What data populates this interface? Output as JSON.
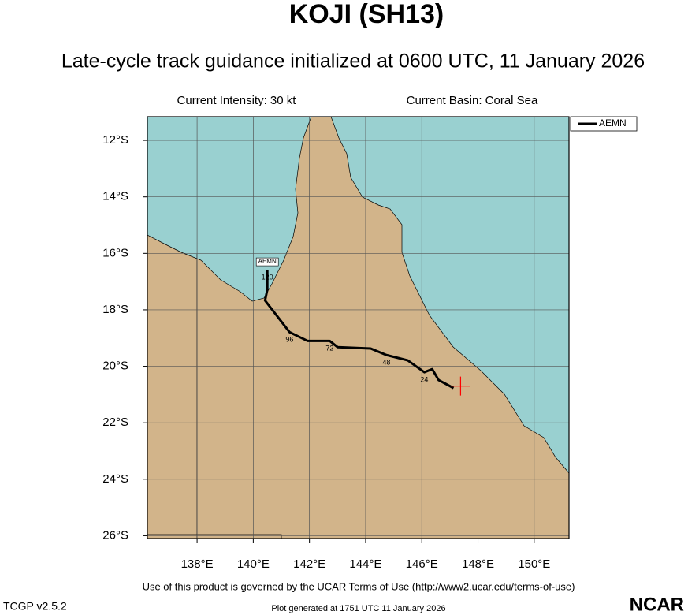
{
  "chart_data": {
    "type": "track",
    "title": "KOJI (SH13)",
    "subtitle": "Late-cycle track guidance initialized at 0600 UTC, 11 January 2026",
    "info_left": "Current Intensity: 30 kt",
    "info_right": "Current Basin: Coral Sea",
    "xlim": [
      136.23,
      151.24
    ],
    "ylim": [
      -26.1,
      -11.16
    ],
    "xticks": [
      {
        "value": 138,
        "label": "138°E"
      },
      {
        "value": 140,
        "label": "140°E"
      },
      {
        "value": 142,
        "label": "142°E"
      },
      {
        "value": 144,
        "label": "144°E"
      },
      {
        "value": 146,
        "label": "146°E"
      },
      {
        "value": 148,
        "label": "148°E"
      },
      {
        "value": 150,
        "label": "150°E"
      }
    ],
    "yticks": [
      {
        "value": -12,
        "label": "12°S"
      },
      {
        "value": -14,
        "label": "14°S"
      },
      {
        "value": -16,
        "label": "16°S"
      },
      {
        "value": -18,
        "label": "18°S"
      },
      {
        "value": -20,
        "label": "20°S"
      },
      {
        "value": -22,
        "label": "22°S"
      },
      {
        "value": -24,
        "label": "24°S"
      },
      {
        "value": -26,
        "label": "26°S"
      }
    ],
    "grid": true,
    "legend": "upper right",
    "current_position": {
      "x": 147.38,
      "y": -20.7,
      "color": "#ff0000"
    },
    "series": [
      {
        "name": "AEMN",
        "color": "#000000",
        "x": [
          147.13,
          146.6,
          146.37,
          146.09,
          145.5,
          144.74,
          144.18,
          143.0,
          142.72,
          141.93,
          141.29,
          140.42,
          140.5,
          140.5
        ],
        "values": [
          -20.77,
          -20.49,
          -20.1,
          -20.21,
          -19.79,
          -19.6,
          -19.37,
          -19.32,
          -19.1,
          -19.1,
          -18.79,
          -17.67,
          -17.28,
          -16.58
        ],
        "point_labels": [
          null,
          null,
          null,
          "24",
          null,
          "48",
          null,
          null,
          "72",
          null,
          "96",
          null,
          null,
          "120"
        ]
      }
    ],
    "footer": "Use of this product is governed by the UCAR Terms of Use (http://www2.ucar.edu/terms-of-use)",
    "version": "TCGP v2.5.2",
    "generated": "Plot generated at 1751 UTC   11 January 2026",
    "logo": "NCAR"
  }
}
